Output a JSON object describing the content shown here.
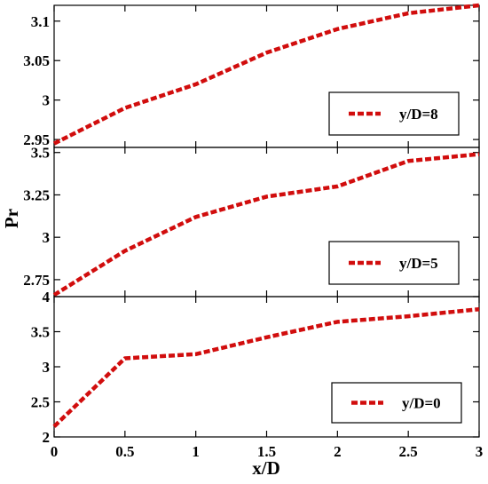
{
  "chart_data": {
    "type": "line",
    "xlabel": "x/D",
    "ylabel": "Pr",
    "xlim": [
      0,
      3
    ],
    "x_ticks": [
      "0",
      "0.5",
      "1",
      "1.5",
      "2",
      "2.5",
      "3"
    ],
    "line_style": "dashed",
    "line_color": "#d10d0d",
    "panels": [
      {
        "legend": "y/D=8",
        "legend_position": "bottom-right",
        "ylim": [
          2.94,
          3.12
        ],
        "y_ticks": [
          "2.95",
          "3",
          "3.05",
          "3.1"
        ],
        "x": [
          0,
          0.5,
          1,
          1.5,
          2,
          2.5,
          3
        ],
        "y": [
          2.945,
          2.99,
          3.02,
          3.06,
          3.09,
          3.11,
          3.12
        ]
      },
      {
        "legend": "y/D=5",
        "legend_position": "bottom-right",
        "ylim": [
          2.65,
          3.53
        ],
        "y_ticks": [
          "2.75",
          "3",
          "3.25",
          "3.5"
        ],
        "x": [
          0,
          0.5,
          1,
          1.5,
          2,
          2.5,
          3
        ],
        "y": [
          2.66,
          2.92,
          3.12,
          3.24,
          3.3,
          3.45,
          3.49
        ]
      },
      {
        "legend": "y/D=0",
        "legend_position": "bottom-right",
        "ylim": [
          2,
          4
        ],
        "y_ticks": [
          "2",
          "2.5",
          "3",
          "3.5",
          "4"
        ],
        "x": [
          0,
          0.5,
          1,
          1.5,
          2,
          2.5,
          3
        ],
        "y": [
          2.15,
          3.12,
          3.18,
          3.42,
          3.64,
          3.72,
          3.82
        ]
      }
    ]
  }
}
